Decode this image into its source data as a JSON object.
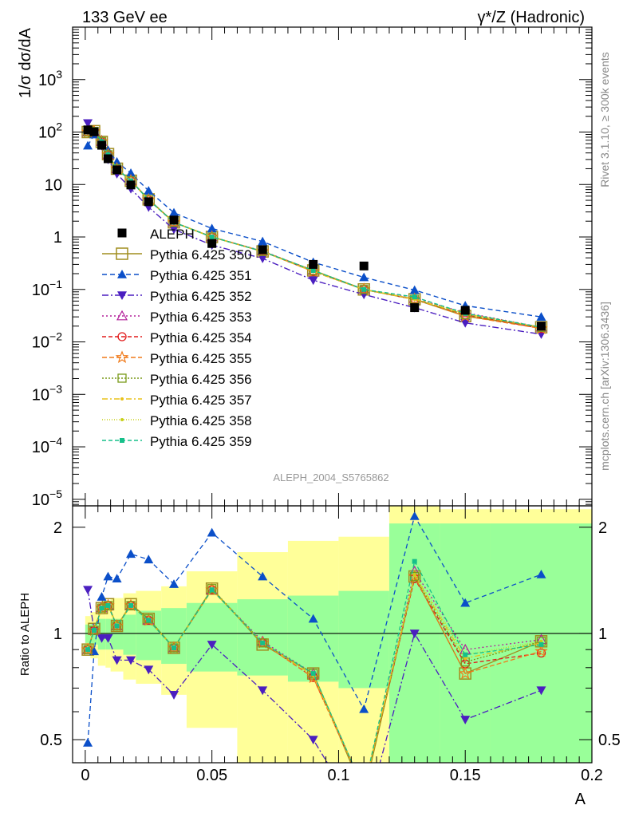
{
  "header": {
    "left": "133 GeV ee",
    "right": "γ*/Z (Hadronic)"
  },
  "side_labels": {
    "rivet": "Rivet 3.1.10, ≥ 300k events",
    "mcplots": "mcplots.cern.ch [arXiv:1306.3436]"
  },
  "reference": "ALEPH_2004_S5765862",
  "colors": {
    "ref": "#000000",
    "band_inner": "#99ff99",
    "band_outer": "#ffff99",
    "ratio_line": "#000000"
  },
  "chart_data": [
    {
      "type": "scatter",
      "panel": "main",
      "title": "",
      "xlabel": "A",
      "ylabel": "1/σ  dσ/dA",
      "ylog": true,
      "xlim": [
        -0.005,
        0.2
      ],
      "ylim": [
        7.5e-06,
        10000
      ],
      "yticks": [
        {
          "v": 1e-05,
          "m": "10",
          "e": "−5"
        },
        {
          "v": 0.0001,
          "m": "10",
          "e": "−4"
        },
        {
          "v": 0.001,
          "m": "10",
          "e": "−3"
        },
        {
          "v": 0.01,
          "m": "10",
          "e": "−2"
        },
        {
          "v": 0.1,
          "m": "10",
          "e": "−1"
        },
        {
          "v": 1,
          "m": "1",
          "e": ""
        },
        {
          "v": 10,
          "m": "10",
          "e": ""
        },
        {
          "v": 100,
          "m": "10",
          "e": "2"
        },
        {
          "v": 1000,
          "m": "10",
          "e": "3"
        }
      ],
      "x": [
        0.001,
        0.0035,
        0.0065,
        0.009,
        0.0125,
        0.018,
        0.025,
        0.035,
        0.05,
        0.07,
        0.09,
        0.11,
        0.13,
        0.15,
        0.18
      ],
      "ref": {
        "name": "ALEPH",
        "values": [
          110,
          101,
          56,
          31,
          19,
          9.8,
          4.7,
          2.1,
          0.75,
          0.57,
          0.3,
          0.28,
          0.045,
          0.04,
          0.02
        ]
      },
      "series": [
        {
          "name": "Pythia 6.425 350",
          "color": "#a08d1f",
          "dash": "",
          "marker": "square-open",
          "values": [
            100,
            104,
            65,
            38,
            20,
            11.8,
            5.2,
            1.9,
            1.0,
            0.53,
            0.23,
            0.1,
            0.065,
            0.031,
            0.019
          ]
        },
        {
          "name": "Pythia 6.425 351",
          "color": "#0b4fc9",
          "dash": "6,4",
          "marker": "triangle-up",
          "values": [
            55,
            90,
            72,
            45,
            27,
            16.5,
            7.6,
            2.9,
            1.45,
            0.82,
            0.33,
            0.17,
            0.097,
            0.049,
            0.03
          ]
        },
        {
          "name": "Pythia 6.425 352",
          "color": "#4b1fc0",
          "dash": "8,3,2,3",
          "marker": "triangle-down",
          "values": [
            148,
            103,
            55,
            30,
            16,
            8.3,
            3.7,
            1.4,
            0.7,
            0.39,
            0.15,
            0.08,
            0.045,
            0.023,
            0.014
          ]
        },
        {
          "name": "Pythia 6.425 353",
          "color": "#b3209a",
          "dash": "2,3",
          "marker": "triangle-open",
          "values": [
            100,
            103,
            66,
            37,
            20,
            11.8,
            5.1,
            1.9,
            1.0,
            0.54,
            0.23,
            0.1,
            0.067,
            0.036,
            0.019
          ]
        },
        {
          "name": "Pythia 6.425 354",
          "color": "#e21b1b",
          "dash": "5,3",
          "marker": "circle-open",
          "values": [
            100,
            103,
            66,
            37,
            20,
            11.8,
            5.1,
            1.9,
            1.0,
            0.53,
            0.22,
            0.1,
            0.064,
            0.033,
            0.018
          ]
        },
        {
          "name": "Pythia 6.425 355",
          "color": "#f07a1a",
          "dash": "6,3",
          "marker": "star-open",
          "values": [
            100,
            103,
            66,
            37,
            20,
            11.8,
            5.1,
            1.9,
            1.0,
            0.53,
            0.22,
            0.1,
            0.065,
            0.031,
            0.018
          ]
        },
        {
          "name": "Pythia 6.425 356",
          "color": "#7a9a1a",
          "dash": "2,2",
          "marker": "square-open-small",
          "values": [
            100,
            103,
            66,
            37,
            20,
            11.8,
            5.2,
            1.9,
            1.0,
            0.53,
            0.23,
            0.1,
            0.065,
            0.033,
            0.019
          ]
        },
        {
          "name": "Pythia 6.425 357",
          "color": "#e8c21a",
          "dash": "7,3,2,3",
          "marker": "dot",
          "values": [
            100,
            103,
            66,
            37,
            20,
            11.8,
            5.1,
            1.9,
            1.0,
            0.53,
            0.22,
            0.1,
            0.065,
            0.034,
            0.019
          ]
        },
        {
          "name": "Pythia 6.425 358",
          "color": "#c8d01a",
          "dash": "1,2",
          "marker": "dot",
          "values": [
            100,
            103,
            66,
            37,
            20,
            11.8,
            5.1,
            1.9,
            1.0,
            0.53,
            0.23,
            0.1,
            0.066,
            0.035,
            0.019
          ]
        },
        {
          "name": "Pythia 6.425 359",
          "color": "#16c08a",
          "dash": "5,3",
          "marker": "square-filled-small",
          "values": [
            100,
            103,
            66,
            37,
            20,
            11.8,
            5.1,
            1.9,
            1.0,
            0.53,
            0.23,
            0.1,
            0.072,
            0.035,
            0.019
          ]
        }
      ]
    },
    {
      "type": "line",
      "panel": "ratio",
      "xlabel": "A",
      "ylabel": "Ratio to ALEPH",
      "ylog": true,
      "xlim": [
        -0.005,
        0.2
      ],
      "ylim": [
        0.43,
        2.3
      ],
      "yticks": [
        0.5,
        1,
        2
      ],
      "xticks": [
        0,
        0.05,
        0.1,
        0.15,
        0.2
      ],
      "reference_line": 1,
      "bands": {
        "edges": [
          0,
          0.002,
          0.005,
          0.008,
          0.01,
          0.015,
          0.02,
          0.03,
          0.04,
          0.06,
          0.08,
          0.1,
          0.12,
          0.14,
          0.16,
          0.2
        ],
        "inner": [
          [
            0.94,
            1.06
          ],
          [
            0.93,
            1.07
          ],
          [
            0.9,
            1.1
          ],
          [
            0.9,
            1.1
          ],
          [
            0.9,
            1.1
          ],
          [
            0.87,
            1.13
          ],
          [
            0.84,
            1.16
          ],
          [
            0.82,
            1.18
          ],
          [
            0.78,
            1.22
          ],
          [
            0.76,
            1.25
          ],
          [
            0.73,
            1.28
          ],
          [
            0.7,
            1.32
          ],
          [
            0.43,
            2.05
          ],
          [
            0.43,
            2.05
          ],
          [
            0.43,
            2.05
          ]
        ],
        "outer": [
          [
            0.88,
            1.12
          ],
          [
            0.85,
            1.15
          ],
          [
            0.81,
            1.22
          ],
          [
            0.8,
            1.24
          ],
          [
            0.78,
            1.26
          ],
          [
            0.74,
            1.3
          ],
          [
            0.72,
            1.32
          ],
          [
            0.67,
            1.36
          ],
          [
            0.54,
            1.5
          ],
          [
            0.43,
            1.7
          ],
          [
            0.43,
            1.83
          ],
          [
            0.43,
            1.88
          ],
          [
            0.43,
            2.3
          ],
          [
            0.43,
            2.25
          ],
          [
            0.43,
            2.25
          ]
        ]
      },
      "x": [
        0.001,
        0.0035,
        0.0065,
        0.009,
        0.0125,
        0.018,
        0.025,
        0.035,
        0.05,
        0.07,
        0.09,
        0.11,
        0.13,
        0.15,
        0.18
      ],
      "series": [
        {
          "name": "Pythia 6.425 350",
          "values": [
            0.9,
            1.03,
            1.18,
            1.21,
            1.05,
            1.21,
            1.1,
            0.91,
            1.34,
            0.93,
            0.77,
            0.35,
            1.45,
            0.77,
            0.95
          ]
        },
        {
          "name": "Pythia 6.425 351",
          "values": [
            0.49,
            0.89,
            1.27,
            1.45,
            1.43,
            1.68,
            1.62,
            1.38,
            1.93,
            1.45,
            1.1,
            0.61,
            2.15,
            1.22,
            1.47
          ]
        },
        {
          "name": "Pythia 6.425 352",
          "values": [
            1.33,
            1.02,
            0.97,
            0.97,
            0.84,
            0.84,
            0.79,
            0.67,
            0.93,
            0.69,
            0.5,
            0.29,
            1.0,
            0.57,
            0.69
          ]
        },
        {
          "name": "Pythia 6.425 353",
          "values": [
            0.9,
            1.02,
            1.18,
            1.2,
            1.05,
            1.2,
            1.09,
            0.91,
            1.33,
            0.95,
            0.77,
            0.36,
            1.5,
            0.9,
            0.96
          ]
        },
        {
          "name": "Pythia 6.425 354",
          "values": [
            0.9,
            1.02,
            1.18,
            1.2,
            1.05,
            1.2,
            1.09,
            0.91,
            1.33,
            0.94,
            0.75,
            0.36,
            1.43,
            0.82,
            0.88
          ]
        },
        {
          "name": "Pythia 6.425 355",
          "values": [
            0.9,
            1.02,
            1.18,
            1.2,
            1.05,
            1.2,
            1.09,
            0.91,
            1.33,
            0.94,
            0.75,
            0.36,
            1.45,
            0.77,
            0.89
          ]
        },
        {
          "name": "Pythia 6.425 356",
          "values": [
            0.9,
            1.02,
            1.18,
            1.2,
            1.05,
            1.2,
            1.1,
            0.91,
            1.34,
            0.94,
            0.77,
            0.36,
            1.45,
            0.83,
            0.95
          ]
        },
        {
          "name": "Pythia 6.425 357",
          "values": [
            0.9,
            1.02,
            1.18,
            1.2,
            1.05,
            1.2,
            1.09,
            0.91,
            1.33,
            0.94,
            0.76,
            0.36,
            1.46,
            0.85,
            0.94
          ]
        },
        {
          "name": "Pythia 6.425 358",
          "values": [
            0.9,
            1.02,
            1.18,
            1.2,
            1.05,
            1.2,
            1.09,
            0.91,
            1.33,
            0.94,
            0.77,
            0.36,
            1.47,
            0.87,
            0.95
          ]
        },
        {
          "name": "Pythia 6.425 359",
          "values": [
            0.9,
            1.02,
            1.18,
            1.2,
            1.05,
            1.2,
            1.09,
            0.91,
            1.33,
            0.94,
            0.77,
            0.36,
            1.6,
            0.87,
            0.93
          ]
        }
      ]
    }
  ]
}
